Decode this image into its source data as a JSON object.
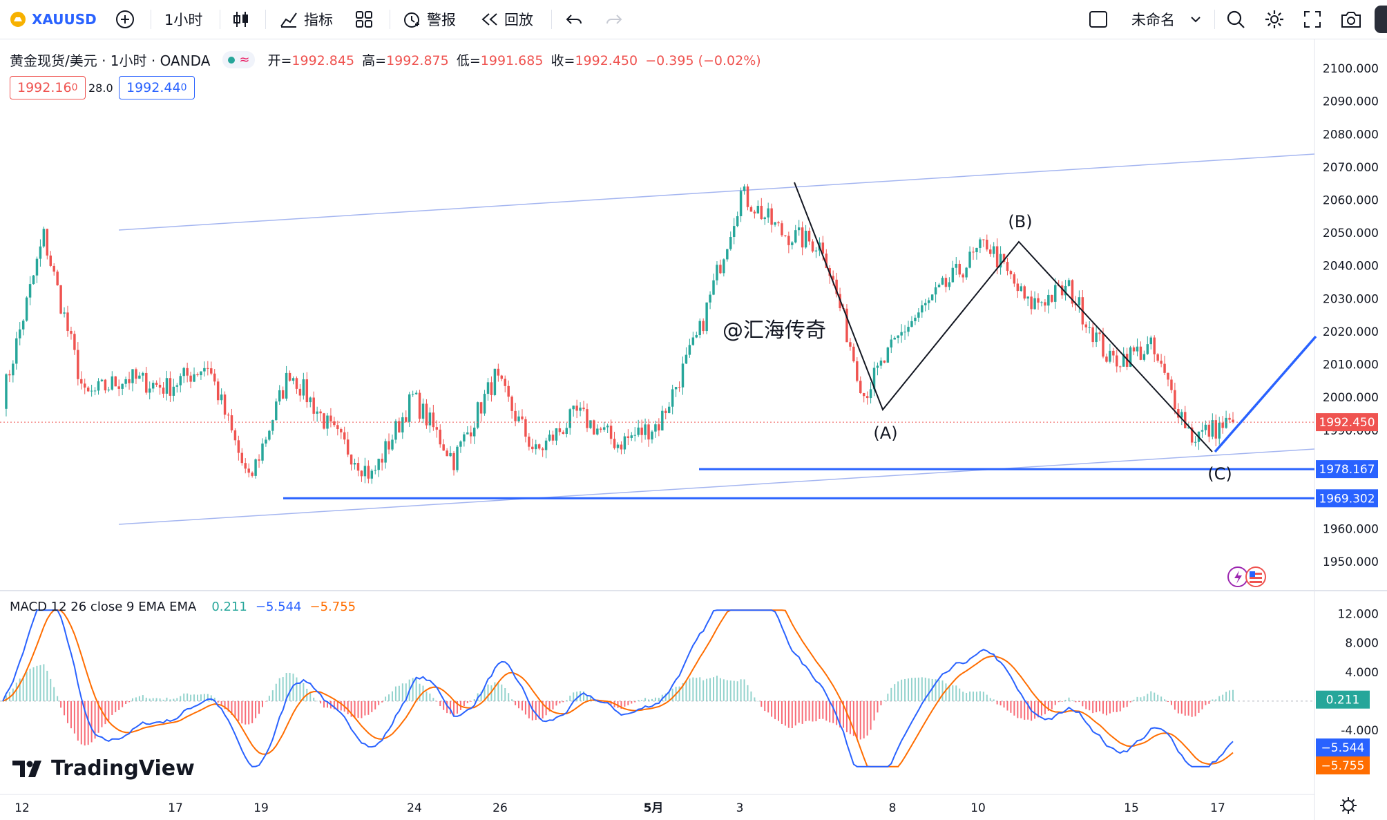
{
  "toolbar": {
    "symbol": "XAUUSD",
    "interval": "1小时",
    "indicators_label": "指标",
    "alert_label": "警报",
    "replay_label": "回放",
    "layout_name": "未命名"
  },
  "legend": {
    "title": "黄金现货/美元 · 1小时 · OANDA",
    "open_label": "开=",
    "open": "1992.845",
    "high_label": "高=",
    "high": "1992.875",
    "low_label": "低=",
    "low": "1991.685",
    "close_label": "收=",
    "close": "1992.450",
    "change": "−0.395 (−0.02%)",
    "sell_price": "1992.16",
    "sell_price_small": "0",
    "spread": "28.0",
    "buy_price": "1992.44",
    "buy_price_small": "0"
  },
  "watermark": "@汇海传奇",
  "wave_labels": [
    "(A)",
    "(B)",
    "(C)"
  ],
  "price_labels": {
    "last": "1992.450",
    "support1": "1978.167",
    "support2": "1969.302"
  },
  "macd": {
    "title": "MACD 12 26 close 9 EMA EMA",
    "hist": "0.211",
    "macd": "−5.544",
    "signal": "−5.755"
  },
  "brand": "TradingView",
  "colors": {
    "up": "#26a69a",
    "down": "#ef5350",
    "blue": "#2962ff",
    "channel": "#a4b5f0",
    "macd_line": "#2962ff",
    "signal_line": "#ff6d00"
  },
  "chart_data": [
    {
      "type": "candlestick",
      "symbol": "XAUUSD",
      "interval": "1h",
      "y_axis_ticks": [
        "2100.000",
        "2090.000",
        "2080.000",
        "2070.000",
        "2060.000",
        "2050.000",
        "2040.000",
        "2030.000",
        "2020.000",
        "2010.000",
        "2000.000",
        "1990.000",
        "1960.000",
        "1950.000"
      ],
      "x_axis_ticks": [
        "12",
        "17",
        "19",
        "24",
        "26",
        "5月",
        "3",
        "8",
        "10",
        "15",
        "17"
      ],
      "ylim": [
        1945,
        2104
      ],
      "close_path_approx": [
        {
          "x": "12",
          "y": 2000
        },
        {
          "x": "14",
          "y": 2049
        },
        {
          "x": "16",
          "y": 2000
        },
        {
          "x": "17",
          "y": 2006
        },
        {
          "x": "18",
          "y": 2003
        },
        {
          "x": "19",
          "y": 2010
        },
        {
          "x": "20",
          "y": 1974
        },
        {
          "x": "21",
          "y": 2008
        },
        {
          "x": "23",
          "y": 1990
        },
        {
          "x": "24",
          "y": 1976
        },
        {
          "x": "25",
          "y": 2000
        },
        {
          "x": "26",
          "y": 1981
        },
        {
          "x": "27",
          "y": 2006
        },
        {
          "x": "28",
          "y": 1983
        },
        {
          "x": "30",
          "y": 1995
        },
        {
          "x": "5月",
          "y": 1986
        },
        {
          "x": "2",
          "y": 1992
        },
        {
          "x": "3",
          "y": 2020
        },
        {
          "x": "4",
          "y": 2062
        },
        {
          "x": "5",
          "y": 2050
        },
        {
          "x": "7",
          "y": 2046
        },
        {
          "x": "8",
          "y": 2001
        },
        {
          "x": "9",
          "y": 2021
        },
        {
          "x": "10",
          "y": 2034
        },
        {
          "x": "11",
          "y": 2047
        },
        {
          "x": "12",
          "y": 2028
        },
        {
          "x": "13",
          "y": 2033
        },
        {
          "x": "15",
          "y": 2011
        },
        {
          "x": "16",
          "y": 2015
        },
        {
          "x": "17",
          "y": 1988
        },
        {
          "x": "18",
          "y": 1992.45
        }
      ],
      "annotations": [
        {
          "label": "(A)",
          "price": 1998.5
        },
        {
          "label": "(B)",
          "price": 2047
        },
        {
          "label": "(C)",
          "price": 1987
        }
      ],
      "horizontal_lines": [
        1978.167,
        1969.302
      ],
      "last_price": 1992.45
    },
    {
      "type": "line",
      "title": "MACD 12 26 close 9 EMA EMA",
      "y_axis_ticks": [
        "12.000",
        "8.000",
        "4.000",
        "-4.000"
      ],
      "ylim": [
        -9.5,
        13
      ],
      "series": [
        {
          "name": "MACD",
          "last": -5.544
        },
        {
          "name": "Signal",
          "last": -5.755
        },
        {
          "name": "Histogram",
          "last": 0.211
        }
      ]
    }
  ]
}
